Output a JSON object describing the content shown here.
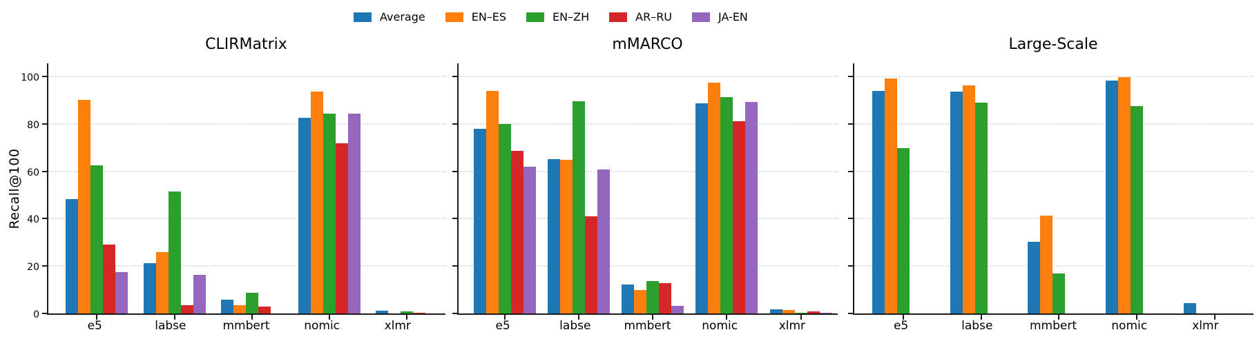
{
  "figure": {
    "background": "#ffffff",
    "text_color": "#000000",
    "axis_color": "#1a1a1a",
    "gridline_color": "#dbdbdb"
  },
  "legend": {
    "position": "top-center",
    "entries": [
      {
        "label": "Average",
        "color": "#1f77b4"
      },
      {
        "label": "EN–ES",
        "color": "#ff7f0e"
      },
      {
        "label": "EN–ZH",
        "color": "#2ca02c"
      },
      {
        "label": "AR–RU",
        "color": "#d62728"
      },
      {
        "label": "JA-EN",
        "color": "#9467bd"
      }
    ]
  },
  "chart_data": [
    {
      "type": "bar",
      "title": "CLIRMatrix",
      "ylabel": "Recall@100",
      "xlabel": "",
      "ylim": [
        0,
        106
      ],
      "yticks": [
        0,
        20,
        40,
        60,
        80,
        100
      ],
      "grid": true,
      "show_ytick_labels": true,
      "categories": [
        "e5",
        "labse",
        "mmbert",
        "nomic",
        "xlmr"
      ],
      "series": [
        {
          "name": "Average",
          "values": [
            48.3,
            21.2,
            5.9,
            82.7,
            1.1
          ]
        },
        {
          "name": "EN–ES",
          "values": [
            90.1,
            26.0,
            3.5,
            93.6,
            0.1
          ]
        },
        {
          "name": "EN–ZH",
          "values": [
            62.6,
            51.5,
            8.7,
            84.2,
            0.8
          ]
        },
        {
          "name": "AR–RU",
          "values": [
            29.2,
            3.4,
            3.0,
            71.9,
            0.4
          ]
        },
        {
          "name": "JA-EN",
          "values": [
            17.3,
            16.4,
            0.0,
            84.2,
            0.1
          ]
        }
      ]
    },
    {
      "type": "bar",
      "title": "mMARCO",
      "ylabel": "",
      "xlabel": "",
      "ylim": [
        0,
        106
      ],
      "yticks": [
        0,
        20,
        40,
        60,
        80,
        100
      ],
      "grid": true,
      "show_ytick_labels": false,
      "categories": [
        "e5",
        "labse",
        "mmbert",
        "nomic",
        "xlmr"
      ],
      "series": [
        {
          "name": "Average",
          "values": [
            77.8,
            65.2,
            12.2,
            88.8,
            1.7
          ]
        },
        {
          "name": "EN–ES",
          "values": [
            94.0,
            64.9,
            9.8,
            97.4,
            1.4
          ]
        },
        {
          "name": "EN–ZH",
          "values": [
            79.9,
            89.5,
            13.8,
            91.2,
            0.4
          ]
        },
        {
          "name": "AR–RU",
          "values": [
            68.7,
            41.0,
            12.7,
            81.1,
            1.0
          ]
        },
        {
          "name": "JA-EN",
          "values": [
            62.0,
            60.9,
            3.3,
            89.3,
            0.4
          ]
        }
      ]
    },
    {
      "type": "bar",
      "title": "Large-Scale",
      "ylabel": "",
      "xlabel": "",
      "ylim": [
        0,
        106
      ],
      "yticks": [
        0,
        20,
        40,
        60,
        80,
        100
      ],
      "grid": true,
      "show_ytick_labels": false,
      "categories": [
        "e5",
        "labse",
        "mmbert",
        "nomic",
        "xlmr"
      ],
      "series": [
        {
          "name": "Average",
          "values": [
            94.0,
            93.7,
            30.3,
            98.4,
            4.3
          ]
        },
        {
          "name": "EN–ES",
          "values": [
            99.2,
            96.3,
            41.4,
            99.8,
            0.0
          ]
        },
        {
          "name": "EN–ZH",
          "values": [
            69.8,
            88.9,
            17.0,
            87.6,
            0.0
          ]
        },
        {
          "name": "AR–RU",
          "values": [
            0.0,
            0.0,
            0.0,
            0.0,
            0.0
          ]
        },
        {
          "name": "JA-EN",
          "values": [
            0.0,
            0.0,
            0.0,
            0.0,
            0.0
          ]
        }
      ]
    }
  ]
}
